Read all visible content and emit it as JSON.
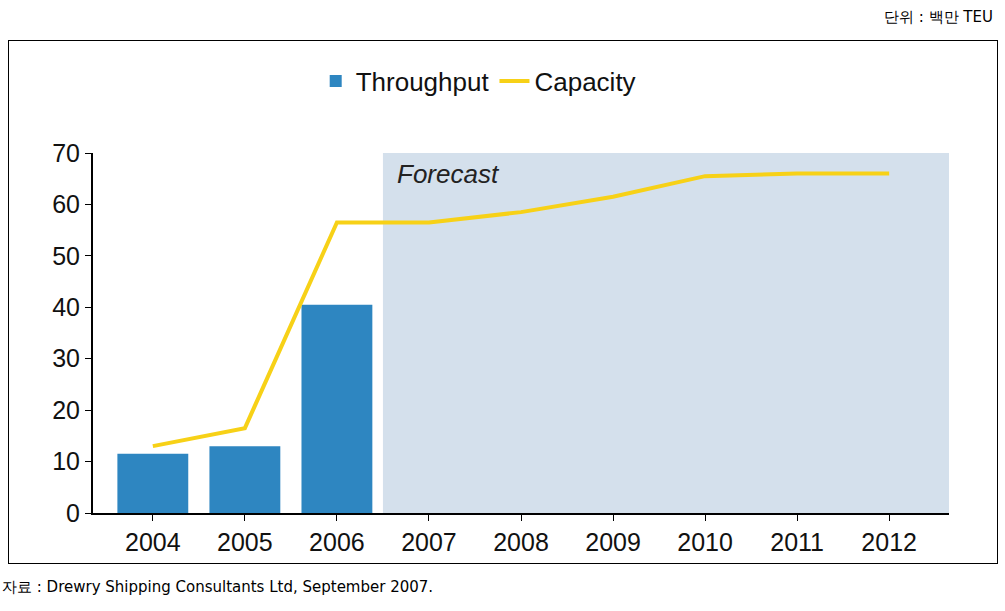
{
  "chart_data": {
    "type": "bar",
    "unit_label": "단위 : 백만 TEU",
    "source": "자료 : Drewry Shipping Consultants Ltd, September 2007.",
    "categories": [
      "2004",
      "2005",
      "2006",
      "2007",
      "2008",
      "2009",
      "2010",
      "2011",
      "2012"
    ],
    "series": [
      {
        "name": "Throughput",
        "type": "bar",
        "color": "#2e86c1",
        "values": [
          11.5,
          13,
          40.5,
          null,
          null,
          null,
          null,
          null,
          null
        ]
      },
      {
        "name": "Capacity",
        "type": "line",
        "color": "#f7d117",
        "values": [
          13,
          16.5,
          56.5,
          56.5,
          58.5,
          61.5,
          65.5,
          66,
          66
        ]
      }
    ],
    "annotations": [
      {
        "text": "Forecast",
        "x": "2007"
      }
    ],
    "ylim": [
      0,
      70
    ],
    "yticks": [
      0,
      10,
      20,
      30,
      40,
      50,
      60,
      70
    ],
    "grid": false,
    "legend": "top"
  }
}
